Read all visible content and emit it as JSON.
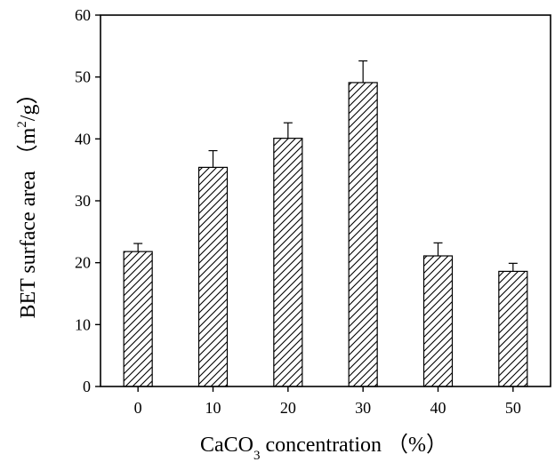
{
  "chart_data": {
    "type": "bar",
    "categories": [
      "0",
      "10",
      "20",
      "30",
      "40",
      "50"
    ],
    "values": [
      21.8,
      35.4,
      40.1,
      49.1,
      21.1,
      18.6
    ],
    "errors": [
      1.3,
      2.7,
      2.5,
      3.5,
      2.1,
      1.3
    ],
    "xlabel": {
      "prefix": "CaCO",
      "sub": "3",
      "suffix": " concentration （%）"
    },
    "ylabel": {
      "prefix": "BET surface area （m",
      "sup": "2",
      "suffix": "/g）"
    },
    "ylim": [
      0,
      60
    ],
    "yticks": [
      "0",
      "10",
      "20",
      "30",
      "40",
      "50",
      "60"
    ],
    "grid": false,
    "bar_fill": "diagonal-hatch",
    "colors": {
      "bar_stroke": "#000000",
      "axis": "#000000",
      "background": "#ffffff"
    }
  }
}
